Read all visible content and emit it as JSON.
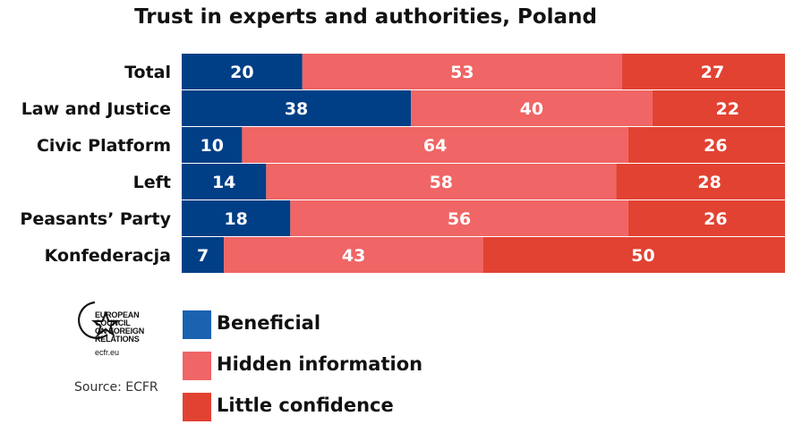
{
  "chart_data": {
    "type": "bar",
    "orientation": "horizontal",
    "stacked": true,
    "title": "Trust in experts and authorities, Poland",
    "categories": [
      "Total",
      "Law and Justice",
      "Civic Platform",
      "Left",
      "Peasants’ Party",
      "Konfederacja"
    ],
    "series": [
      {
        "name": "Beneficial",
        "color": "#003f86",
        "values": [
          20,
          38,
          10,
          14,
          18,
          7
        ]
      },
      {
        "name": "Hidden information",
        "color": "#f06565",
        "values": [
          53,
          40,
          64,
          58,
          56,
          43
        ]
      },
      {
        "name": "Little confidence",
        "color": "#e24232",
        "values": [
          27,
          22,
          26,
          28,
          26,
          50
        ]
      }
    ],
    "xlim": [
      0,
      100
    ],
    "grid": false,
    "legend": "bottom-left"
  },
  "legend_colors": [
    "#1a63b0",
    "#f06565",
    "#e24232"
  ],
  "logo": {
    "lines": [
      "EUROPEAN",
      "COUNCIL",
      "ON FOREIGN",
      "RELATIONS"
    ],
    "url": "ecfr.eu"
  },
  "source": "Source: ECFR"
}
